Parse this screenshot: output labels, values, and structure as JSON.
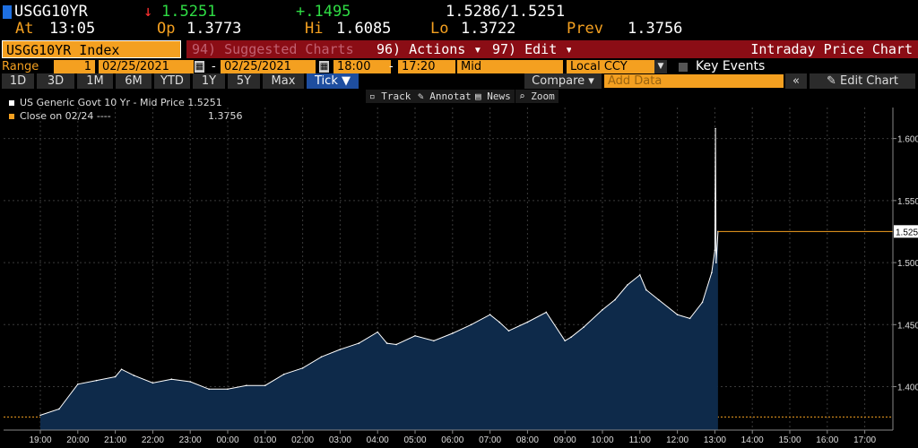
{
  "quote": {
    "ticker": "USGG10YR",
    "arrow": "↓",
    "last": "1.5251",
    "change": "+.1495",
    "bid_ask": "1.5286/1.5251",
    "at_label": "At",
    "time": "13:05",
    "open_label": "Op",
    "open": "1.3773",
    "high_label": "Hi",
    "high": "1.6085",
    "low_label": "Lo",
    "low": "1.3722",
    "prev_label": "Prev",
    "prev": "1.3756"
  },
  "menu": {
    "security": "USGG10YR Index",
    "suggested": "94) Suggested Charts",
    "actions": "96) Actions ▾",
    "edit": "97) Edit ▾",
    "title": "Intraday Price Chart"
  },
  "controls": {
    "range_label": "Range",
    "range_num": "1",
    "start_date": "02/25/2021",
    "dash": "-",
    "end_date": "02/25/2021",
    "start_time": "18:00",
    "end_time": "17:20",
    "price_type": "Mid",
    "currency": "Local CCY",
    "key_events": "Key Events"
  },
  "periods": [
    "1D",
    "3D",
    "1M",
    "6M",
    "YTD",
    "1Y",
    "5Y",
    "Max"
  ],
  "tick_label": "Tick ▼",
  "compare_label": "Compare ▾",
  "add_data_placeholder": "Add Data",
  "collapse_label": "«",
  "edit_chart_label": "✎ Edit Chart",
  "toolbar": [
    "Track",
    "Annotate",
    "News",
    "Zoom"
  ],
  "legend": {
    "series1": "US Generic Govt 10 Yr - Mid Price 1.5251",
    "series2": "Close on 02/24 ----",
    "series2_value": "1.3756"
  },
  "colors": {
    "accent_orange": "#f4a020",
    "menu_red": "#8b0d15",
    "area_fill": "#0e2a4a",
    "line_white": "#ffffff",
    "prev_close_line": "#f4a020",
    "last_line": "#f4a020"
  },
  "chart_data": {
    "type": "area",
    "title": "",
    "xlabel": "",
    "ylabel": "",
    "ylim": [
      1.365,
      1.625
    ],
    "y_ticks": [
      "1.400",
      "1.450",
      "1.500",
      "1.550",
      "1.600"
    ],
    "x_ticks": [
      "19:00",
      "20:00",
      "21:00",
      "22:00",
      "23:00",
      "00:00",
      "01:00",
      "02:00",
      "03:00",
      "04:00",
      "05:00",
      "06:00",
      "07:00",
      "08:00",
      "09:00",
      "10:00",
      "11:00",
      "12:00",
      "13:00",
      "14:00",
      "15:00",
      "16:00",
      "17:00"
    ],
    "last_value_label": "1.525",
    "prev_close": 1.3756,
    "last": 1.5251,
    "series": [
      {
        "name": "US Generic Govt 10 Yr - Mid Price",
        "x": [
          "19:00",
          "19:30",
          "20:00",
          "20:30",
          "21:00",
          "21:10",
          "21:30",
          "22:00",
          "22:30",
          "23:00",
          "23:30",
          "00:00",
          "00:30",
          "01:00",
          "01:30",
          "02:00",
          "02:30",
          "03:00",
          "03:30",
          "04:00",
          "04:15",
          "04:30",
          "05:00",
          "05:30",
          "06:00",
          "06:30",
          "07:00",
          "07:15",
          "07:30",
          "08:00",
          "08:30",
          "09:00",
          "09:10",
          "09:30",
          "10:00",
          "10:20",
          "10:40",
          "11:00",
          "11:10",
          "11:30",
          "12:00",
          "12:20",
          "12:40",
          "12:55",
          "13:00",
          "13:01",
          "13:02",
          "13:05"
        ],
        "values": [
          1.377,
          1.382,
          1.402,
          1.405,
          1.408,
          1.414,
          1.409,
          1.403,
          1.406,
          1.404,
          1.398,
          1.398,
          1.401,
          1.401,
          1.41,
          1.415,
          1.424,
          1.43,
          1.435,
          1.444,
          1.435,
          1.434,
          1.441,
          1.437,
          1.443,
          1.45,
          1.458,
          1.452,
          1.445,
          1.452,
          1.46,
          1.437,
          1.44,
          1.448,
          1.462,
          1.47,
          1.482,
          1.49,
          1.478,
          1.47,
          1.458,
          1.455,
          1.468,
          1.492,
          1.51,
          1.608,
          1.5,
          1.525
        ]
      }
    ]
  }
}
